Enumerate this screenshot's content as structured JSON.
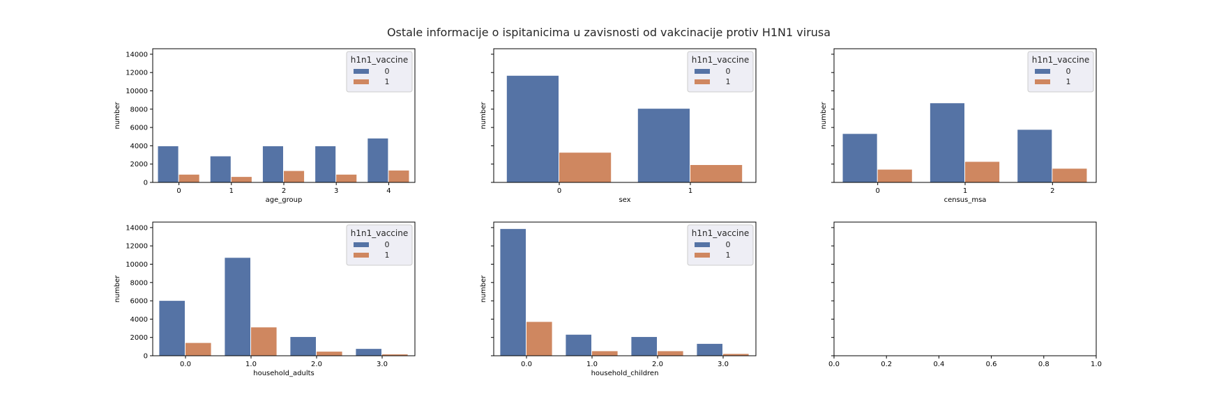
{
  "figure": {
    "suptitle": "Ostale informacije o ispitanicima u zavisnosti od vakcinacije protiv H1N1 virusa",
    "colors": {
      "series0": "#5573a5",
      "series1": "#cf8760",
      "background": "#ffffff"
    }
  },
  "chart_data": [
    {
      "type": "bar",
      "xlabel": "age_group",
      "ylabel": "number",
      "ylim": [
        0,
        14600
      ],
      "yticks": [
        0,
        2000,
        4000,
        6000,
        8000,
        10000,
        12000,
        14000
      ],
      "show_ytick_labels": true,
      "categories": [
        "0",
        "1",
        "2",
        "3",
        "4"
      ],
      "legend": {
        "title": "h1n1_vaccine",
        "placement": "top-right"
      },
      "series": [
        {
          "name": "0",
          "values": [
            3950,
            2850,
            3950,
            3950,
            4800
          ]
        },
        {
          "name": "1",
          "values": [
            850,
            600,
            1250,
            850,
            1300
          ]
        }
      ]
    },
    {
      "type": "bar",
      "xlabel": "sex",
      "ylabel": "number",
      "ylim": [
        0,
        14600
      ],
      "yticks": [
        0,
        2000,
        4000,
        6000,
        8000,
        10000,
        12000,
        14000
      ],
      "show_ytick_labels": false,
      "categories": [
        "0",
        "1"
      ],
      "legend": {
        "title": "h1n1_vaccine",
        "placement": "top-right"
      },
      "series": [
        {
          "name": "0",
          "values": [
            11650,
            8050
          ]
        },
        {
          "name": "1",
          "values": [
            3250,
            1900
          ]
        }
      ]
    },
    {
      "type": "bar",
      "xlabel": "census_msa",
      "ylabel": "number",
      "ylim": [
        0,
        14600
      ],
      "yticks": [
        0,
        2000,
        4000,
        6000,
        8000,
        10000,
        12000,
        14000
      ],
      "show_ytick_labels": false,
      "categories": [
        "0",
        "1",
        "2"
      ],
      "legend": {
        "title": "h1n1_vaccine",
        "placement": "top-right"
      },
      "series": [
        {
          "name": "0",
          "values": [
            5300,
            8650,
            5750
          ]
        },
        {
          "name": "1",
          "values": [
            1400,
            2250,
            1500
          ]
        }
      ]
    },
    {
      "type": "bar",
      "xlabel": "household_adults",
      "ylabel": "number",
      "ylim": [
        0,
        14600
      ],
      "yticks": [
        0,
        2000,
        4000,
        6000,
        8000,
        10000,
        12000,
        14000
      ],
      "show_ytick_labels": true,
      "categories": [
        "0.0",
        "1.0",
        "2.0",
        "3.0"
      ],
      "legend": {
        "title": "h1n1_vaccine",
        "placement": "top-right"
      },
      "series": [
        {
          "name": "0",
          "values": [
            6000,
            10700,
            2050,
            750
          ]
        },
        {
          "name": "1",
          "values": [
            1400,
            3100,
            450,
            150
          ]
        }
      ]
    },
    {
      "type": "bar",
      "xlabel": "household_children",
      "ylabel": "number",
      "ylim": [
        0,
        14600
      ],
      "yticks": [
        0,
        2000,
        4000,
        6000,
        8000,
        10000,
        12000,
        14000
      ],
      "show_ytick_labels": false,
      "categories": [
        "0.0",
        "1.0",
        "2.0",
        "3.0"
      ],
      "legend": {
        "title": "h1n1_vaccine",
        "placement": "top-right"
      },
      "series": [
        {
          "name": "0",
          "values": [
            13850,
            2300,
            2050,
            1300
          ]
        },
        {
          "name": "1",
          "values": [
            3700,
            500,
            500,
            200
          ]
        }
      ]
    },
    {
      "type": "empty",
      "xlabel": "",
      "ylabel": "",
      "xlim": [
        0,
        1
      ],
      "xticks": [
        "0.0",
        "0.2",
        "0.4",
        "0.6",
        "0.8",
        "1.0"
      ],
      "yticks_count": 8,
      "show_ytick_labels": false
    }
  ]
}
